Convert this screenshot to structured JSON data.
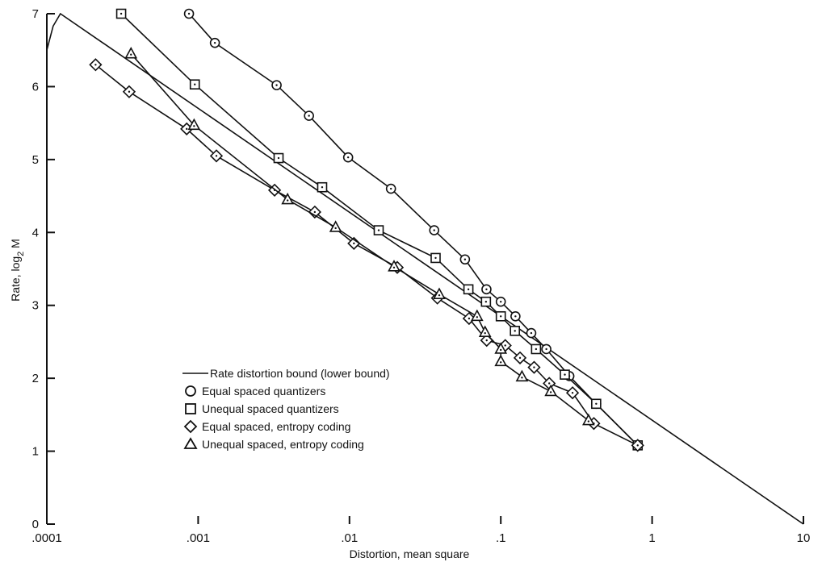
{
  "chart_data": {
    "type": "line",
    "title": "",
    "xlabel": "Distortion, mean square",
    "ylabel_main": "Rate, log",
    "ylabel_sub": "2",
    "ylabel_tail": " M",
    "x_scale": "log",
    "xlim": [
      0.0001,
      10
    ],
    "ylim": [
      0,
      7
    ],
    "grid": false,
    "legend_position": "center-left",
    "x_ticks": [
      {
        "value": 0.0001,
        "label": ".0001"
      },
      {
        "value": 0.001,
        "label": ".001"
      },
      {
        "value": 0.01,
        "label": ".01"
      },
      {
        "value": 0.1,
        "label": ".1"
      },
      {
        "value": 1,
        "label": "1"
      },
      {
        "value": 10,
        "label": "10"
      }
    ],
    "y_ticks": [
      {
        "value": 0,
        "label": "0"
      },
      {
        "value": 1,
        "label": "1"
      },
      {
        "value": 2,
        "label": "2"
      },
      {
        "value": 3,
        "label": "3"
      },
      {
        "value": 4,
        "label": "4"
      },
      {
        "value": 5,
        "label": "5"
      },
      {
        "value": 6,
        "label": "6"
      },
      {
        "value": 7,
        "label": "7"
      }
    ],
    "series": [
      {
        "name": "Rate distortion bound (lower bound)",
        "marker": "none",
        "points": [
          [
            0.0001,
            6.5
          ],
          [
            0.00011,
            6.83
          ],
          [
            0.000123,
            7.0
          ],
          [
            10,
            0.0
          ]
        ]
      },
      {
        "name": "Equal spaced quantizers",
        "marker": "circle",
        "points": [
          [
            0.00087,
            7.0
          ],
          [
            0.00129,
            6.6
          ],
          [
            0.0033,
            6.02
          ],
          [
            0.0054,
            5.6
          ],
          [
            0.0098,
            5.03
          ],
          [
            0.0188,
            4.6
          ],
          [
            0.0363,
            4.03
          ],
          [
            0.058,
            3.63
          ],
          [
            0.0804,
            3.22
          ],
          [
            0.1,
            3.05
          ],
          [
            0.125,
            2.85
          ],
          [
            0.159,
            2.62
          ],
          [
            0.2,
            2.4
          ],
          [
            0.284,
            2.03
          ],
          [
            0.427,
            1.65
          ],
          [
            0.803,
            1.08
          ]
        ]
      },
      {
        "name": "Unequal spaced quantizers",
        "marker": "square",
        "points": [
          [
            0.00031,
            7.0
          ],
          [
            0.00095,
            6.03
          ],
          [
            0.0034,
            5.02
          ],
          [
            0.0066,
            4.62
          ],
          [
            0.0156,
            4.03
          ],
          [
            0.0371,
            3.65
          ],
          [
            0.0611,
            3.22
          ],
          [
            0.0798,
            3.05
          ],
          [
            0.1,
            2.85
          ],
          [
            0.124,
            2.65
          ],
          [
            0.171,
            2.4
          ],
          [
            0.265,
            2.05
          ],
          [
            0.427,
            1.65
          ],
          [
            0.803,
            1.08
          ]
        ]
      },
      {
        "name": "Equal spaced, entropy coding",
        "marker": "diamond",
        "points": [
          [
            0.00021,
            6.3
          ],
          [
            0.00035,
            5.93
          ],
          [
            0.00084,
            5.42
          ],
          [
            0.00132,
            5.05
          ],
          [
            0.0032,
            4.58
          ],
          [
            0.0059,
            4.28
          ],
          [
            0.0107,
            3.85
          ],
          [
            0.0207,
            3.52
          ],
          [
            0.0381,
            3.1
          ],
          [
            0.0617,
            2.82
          ],
          [
            0.0807,
            2.52
          ],
          [
            0.107,
            2.45
          ],
          [
            0.134,
            2.28
          ],
          [
            0.166,
            2.15
          ],
          [
            0.209,
            1.93
          ],
          [
            0.298,
            1.8
          ],
          [
            0.412,
            1.38
          ],
          [
            0.803,
            1.08
          ]
        ]
      },
      {
        "name": "Unequal spaced, entropy coding",
        "marker": "triangle",
        "points": [
          [
            0.00036,
            6.45
          ],
          [
            0.00094,
            5.47
          ],
          [
            0.0039,
            4.45
          ],
          [
            0.0081,
            4.07
          ],
          [
            0.0197,
            3.53
          ],
          [
            0.0392,
            3.15
          ],
          [
            0.0697,
            2.85
          ],
          [
            0.0787,
            2.63
          ],
          [
            0.1,
            2.4
          ],
          [
            0.1,
            2.23
          ],
          [
            0.138,
            2.02
          ],
          [
            0.214,
            1.82
          ],
          [
            0.38,
            1.42
          ]
        ]
      }
    ]
  }
}
